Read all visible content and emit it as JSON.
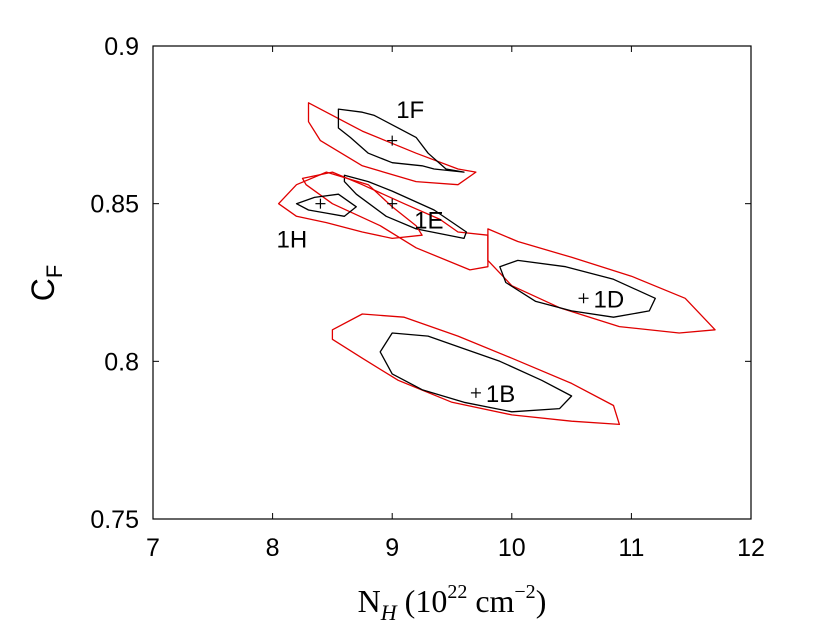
{
  "chart_data": {
    "type": "contour",
    "xlabel_base": "N",
    "xlabel_sub": "H",
    "xlabel_units_open": " (10",
    "xlabel_exp": "22",
    "xlabel_units_mid": " cm",
    "xlabel_units_exp": "−2",
    "xlabel_units_close": ")",
    "ylabel_base": "C",
    "ylabel_sub": "F",
    "xlim": [
      7,
      12
    ],
    "ylim": [
      0.75,
      0.9
    ],
    "x_ticks": [
      7,
      8,
      9,
      10,
      11,
      12
    ],
    "x_tick_labels": [
      "7",
      "8",
      "9",
      "10",
      "11",
      "12"
    ],
    "y_ticks": [
      0.75,
      0.8,
      0.85,
      0.9
    ],
    "y_tick_labels": [
      "0.75",
      "0.8",
      "0.85",
      "0.9"
    ],
    "contour_colors": {
      "inner": "#000000",
      "outer": "#e00000"
    },
    "points": [
      {
        "name": "1F",
        "x": 9.0,
        "y": 0.87,
        "label_dx": 0.0,
        "label_dy": 0.01
      },
      {
        "name": "1E",
        "x": 9.0,
        "y": 0.85,
        "label_dx": 0.15,
        "label_dy": -0.005
      },
      {
        "name": "1H",
        "x": 8.4,
        "y": 0.85,
        "label_dx": -0.2,
        "label_dy": -0.011
      },
      {
        "name": "1D",
        "x": 10.6,
        "y": 0.82,
        "label_dx": 0.05,
        "label_dy": 0.0
      },
      {
        "name": "1B",
        "x": 9.7,
        "y": 0.79,
        "label_dx": 0.05,
        "label_dy": 0.0
      }
    ],
    "contours": [
      {
        "id": "1F-outer",
        "level": "outer",
        "pts": [
          [
            8.3,
            0.882
          ],
          [
            8.75,
            0.873
          ],
          [
            9.2,
            0.866
          ],
          [
            9.55,
            0.861
          ],
          [
            9.7,
            0.86
          ],
          [
            9.55,
            0.856
          ],
          [
            9.2,
            0.857
          ],
          [
            8.75,
            0.862
          ],
          [
            8.4,
            0.87
          ],
          [
            8.3,
            0.876
          ]
        ]
      },
      {
        "id": "1F-inner",
        "level": "inner",
        "pts": [
          [
            8.55,
            0.88
          ],
          [
            8.75,
            0.879
          ],
          [
            8.85,
            0.878
          ],
          [
            9.2,
            0.871
          ],
          [
            9.3,
            0.866
          ],
          [
            9.45,
            0.861
          ],
          [
            9.6,
            0.86
          ],
          [
            9.35,
            0.861
          ],
          [
            9.25,
            0.862
          ],
          [
            9.0,
            0.863
          ],
          [
            8.8,
            0.866
          ],
          [
            8.65,
            0.871
          ],
          [
            8.55,
            0.874
          ]
        ]
      },
      {
        "id": "1E-outer",
        "level": "outer",
        "pts": [
          [
            8.25,
            0.858
          ],
          [
            8.5,
            0.86
          ],
          [
            8.75,
            0.856
          ],
          [
            9.1,
            0.85
          ],
          [
            9.4,
            0.845
          ],
          [
            9.55,
            0.841
          ],
          [
            9.8,
            0.84
          ],
          [
            9.8,
            0.83
          ],
          [
            9.65,
            0.829
          ],
          [
            9.2,
            0.836
          ],
          [
            8.9,
            0.843
          ],
          [
            8.5,
            0.85
          ],
          [
            8.28,
            0.856
          ]
        ]
      },
      {
        "id": "1E-inner",
        "level": "inner",
        "pts": [
          [
            8.6,
            0.859
          ],
          [
            8.8,
            0.857
          ],
          [
            9.0,
            0.854
          ],
          [
            9.35,
            0.848
          ],
          [
            9.62,
            0.841
          ],
          [
            9.6,
            0.839
          ],
          [
            9.2,
            0.842
          ],
          [
            8.95,
            0.846
          ],
          [
            8.7,
            0.853
          ],
          [
            8.6,
            0.857
          ]
        ]
      },
      {
        "id": "1H-outer",
        "level": "outer",
        "pts": [
          [
            8.05,
            0.85
          ],
          [
            8.2,
            0.856
          ],
          [
            8.45,
            0.86
          ],
          [
            8.8,
            0.856
          ],
          [
            9.0,
            0.849
          ],
          [
            9.2,
            0.843
          ],
          [
            9.25,
            0.84
          ],
          [
            9.0,
            0.839
          ],
          [
            8.75,
            0.841
          ],
          [
            8.45,
            0.844
          ],
          [
            8.2,
            0.846
          ]
        ]
      },
      {
        "id": "1H-inner",
        "level": "inner",
        "pts": [
          [
            8.2,
            0.85
          ],
          [
            8.35,
            0.852
          ],
          [
            8.55,
            0.853
          ],
          [
            8.7,
            0.849
          ],
          [
            8.6,
            0.846
          ],
          [
            8.45,
            0.847
          ],
          [
            8.3,
            0.848
          ]
        ]
      },
      {
        "id": "1D-outer",
        "level": "outer",
        "pts": [
          [
            9.8,
            0.842
          ],
          [
            10.05,
            0.838
          ],
          [
            10.5,
            0.833
          ],
          [
            11.0,
            0.827
          ],
          [
            11.45,
            0.82
          ],
          [
            11.7,
            0.81
          ],
          [
            11.4,
            0.809
          ],
          [
            10.9,
            0.811
          ],
          [
            10.4,
            0.817
          ],
          [
            10.0,
            0.824
          ],
          [
            9.8,
            0.832
          ]
        ]
      },
      {
        "id": "1D-inner",
        "level": "inner",
        "pts": [
          [
            9.9,
            0.83
          ],
          [
            10.05,
            0.832
          ],
          [
            10.45,
            0.83
          ],
          [
            10.85,
            0.826
          ],
          [
            11.2,
            0.82
          ],
          [
            11.15,
            0.816
          ],
          [
            10.85,
            0.814
          ],
          [
            10.5,
            0.816
          ],
          [
            10.2,
            0.819
          ],
          [
            9.95,
            0.825
          ]
        ]
      },
      {
        "id": "1B-outer",
        "level": "outer",
        "pts": [
          [
            8.5,
            0.81
          ],
          [
            8.75,
            0.815
          ],
          [
            9.1,
            0.814
          ],
          [
            9.55,
            0.808
          ],
          [
            10.0,
            0.801
          ],
          [
            10.5,
            0.793
          ],
          [
            10.85,
            0.786
          ],
          [
            10.9,
            0.78
          ],
          [
            10.5,
            0.781
          ],
          [
            10.0,
            0.783
          ],
          [
            9.5,
            0.787
          ],
          [
            9.05,
            0.794
          ],
          [
            8.75,
            0.801
          ],
          [
            8.5,
            0.807
          ]
        ]
      },
      {
        "id": "1B-inner",
        "level": "inner",
        "pts": [
          [
            8.9,
            0.803
          ],
          [
            9.0,
            0.809
          ],
          [
            9.3,
            0.808
          ],
          [
            9.6,
            0.804
          ],
          [
            9.9,
            0.8
          ],
          [
            10.25,
            0.794
          ],
          [
            10.5,
            0.789
          ],
          [
            10.4,
            0.785
          ],
          [
            10.0,
            0.784
          ],
          [
            9.6,
            0.787
          ],
          [
            9.25,
            0.791
          ],
          [
            9.0,
            0.796
          ]
        ]
      }
    ]
  }
}
